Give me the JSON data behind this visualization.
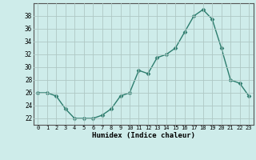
{
  "x": [
    0,
    1,
    2,
    3,
    4,
    5,
    6,
    7,
    8,
    9,
    10,
    11,
    12,
    13,
    14,
    15,
    16,
    17,
    18,
    19,
    20,
    21,
    22,
    23
  ],
  "y": [
    26,
    26,
    25.5,
    23.5,
    22,
    22,
    22,
    22.5,
    23.5,
    25.5,
    26,
    29.5,
    29,
    31.5,
    32,
    33,
    35.5,
    38,
    39,
    37.5,
    33,
    28,
    27.5,
    25.5
  ],
  "xlabel": "Humidex (Indice chaleur)",
  "ylim": [
    21,
    40
  ],
  "xlim": [
    -0.5,
    23.5
  ],
  "yticks": [
    22,
    24,
    26,
    28,
    30,
    32,
    34,
    36,
    38
  ],
  "xtick_labels": [
    "0",
    "1",
    "2",
    "3",
    "4",
    "5",
    "6",
    "7",
    "8",
    "9",
    "10",
    "11",
    "12",
    "13",
    "14",
    "15",
    "16",
    "17",
    "18",
    "19",
    "20",
    "21",
    "22",
    "23"
  ],
  "line_color": "#2d7d6e",
  "marker": "D",
  "marker_size": 2.5,
  "line_width": 1.0,
  "bg_color": "#ceecea",
  "grid_color": "#aec8c4",
  "spine_color": "#555555"
}
